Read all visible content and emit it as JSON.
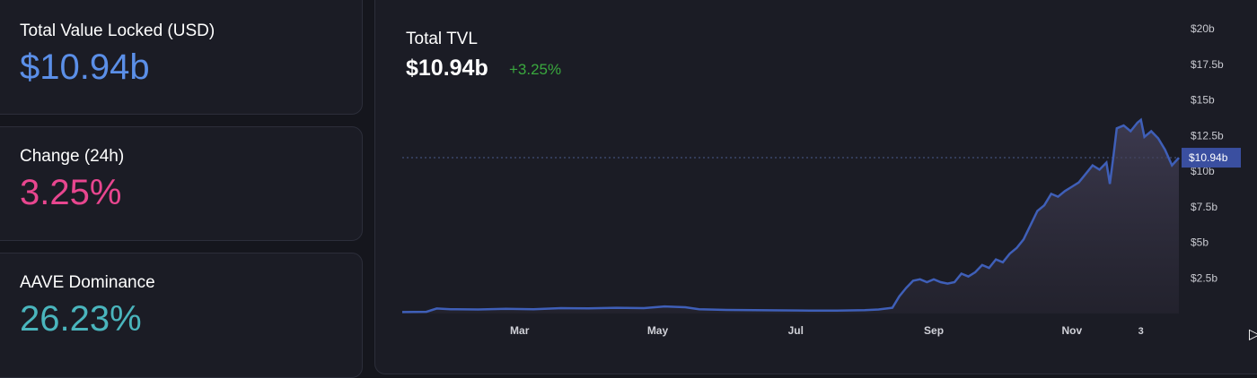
{
  "stats": [
    {
      "label": "Total Value Locked (USD)",
      "value": "$10.94b",
      "color": "#5b8fe8"
    },
    {
      "label": "Change (24h)",
      "value": "3.25%",
      "color": "#e8468f"
    },
    {
      "label": "AAVE Dominance",
      "value": "26.23%",
      "color": "#4ab5bd"
    }
  ],
  "chart": {
    "title": "Total TVL",
    "value": "$10.94b",
    "change": "+3.25%"
  },
  "chart_data": {
    "type": "area",
    "title": "Total TVL",
    "xlabel": "",
    "ylabel": "",
    "ylim": [
      0,
      20
    ],
    "y_unit": "billion USD",
    "y_ticks": [
      {
        "v": 20,
        "label": "$20b"
      },
      {
        "v": 17.5,
        "label": "$17.5b"
      },
      {
        "v": 15,
        "label": "$15b"
      },
      {
        "v": 12.5,
        "label": "$12.5b"
      },
      {
        "v": 10,
        "label": "$10b"
      },
      {
        "v": 7.5,
        "label": "$7.5b"
      },
      {
        "v": 5,
        "label": "$5b"
      },
      {
        "v": 2.5,
        "label": "$2.5b"
      }
    ],
    "x_ticks": [
      {
        "t": 1.0,
        "label": "Mar"
      },
      {
        "t": 3.0,
        "label": "May"
      },
      {
        "t": 5.0,
        "label": "Jul"
      },
      {
        "t": 7.0,
        "label": "Sep"
      },
      {
        "t": 9.0,
        "label": "Nov"
      },
      {
        "t": 10.0,
        "label": "3"
      }
    ],
    "series": [
      {
        "values": [
          [
            -0.7,
            0.1
          ],
          [
            -0.35,
            0.12
          ],
          [
            -0.2,
            0.35
          ],
          [
            0.0,
            0.3
          ],
          [
            0.4,
            0.28
          ],
          [
            0.8,
            0.33
          ],
          [
            1.2,
            0.3
          ],
          [
            1.6,
            0.38
          ],
          [
            2.0,
            0.36
          ],
          [
            2.4,
            0.4
          ],
          [
            2.8,
            0.38
          ],
          [
            3.1,
            0.5
          ],
          [
            3.4,
            0.44
          ],
          [
            3.6,
            0.3
          ],
          [
            4.0,
            0.25
          ],
          [
            4.4,
            0.24
          ],
          [
            4.8,
            0.22
          ],
          [
            5.2,
            0.2
          ],
          [
            5.6,
            0.2
          ],
          [
            6.0,
            0.24
          ],
          [
            6.2,
            0.28
          ],
          [
            6.4,
            0.4
          ],
          [
            6.5,
            1.2
          ],
          [
            6.6,
            1.8
          ],
          [
            6.7,
            2.3
          ],
          [
            6.8,
            2.4
          ],
          [
            6.9,
            2.2
          ],
          [
            7.0,
            2.4
          ],
          [
            7.1,
            2.2
          ],
          [
            7.2,
            2.1
          ],
          [
            7.3,
            2.2
          ],
          [
            7.4,
            2.8
          ],
          [
            7.5,
            2.6
          ],
          [
            7.6,
            2.9
          ],
          [
            7.7,
            3.4
          ],
          [
            7.8,
            3.2
          ],
          [
            7.9,
            3.8
          ],
          [
            8.0,
            3.6
          ],
          [
            8.1,
            4.2
          ],
          [
            8.2,
            4.6
          ],
          [
            8.3,
            5.2
          ],
          [
            8.4,
            6.2
          ],
          [
            8.5,
            7.2
          ],
          [
            8.6,
            7.6
          ],
          [
            8.7,
            8.4
          ],
          [
            8.8,
            8.2
          ],
          [
            8.9,
            8.6
          ],
          [
            9.0,
            8.9
          ],
          [
            9.1,
            9.2
          ],
          [
            9.2,
            9.8
          ],
          [
            9.3,
            10.4
          ],
          [
            9.4,
            10.1
          ],
          [
            9.5,
            10.6
          ],
          [
            9.55,
            9.1
          ],
          [
            9.6,
            11.0
          ],
          [
            9.65,
            13.0
          ],
          [
            9.75,
            13.2
          ],
          [
            9.85,
            12.8
          ],
          [
            9.95,
            13.4
          ],
          [
            10.0,
            13.6
          ],
          [
            10.05,
            12.4
          ],
          [
            10.15,
            12.8
          ],
          [
            10.25,
            12.3
          ],
          [
            10.35,
            11.5
          ],
          [
            10.45,
            10.4
          ],
          [
            10.55,
            10.94
          ]
        ]
      }
    ],
    "current_marker": {
      "v": 10.94,
      "label": "$10.94b"
    },
    "grid": false,
    "legend": "none",
    "line_color": "#3f5fb8",
    "marker_bg": "#3a4fa0"
  }
}
